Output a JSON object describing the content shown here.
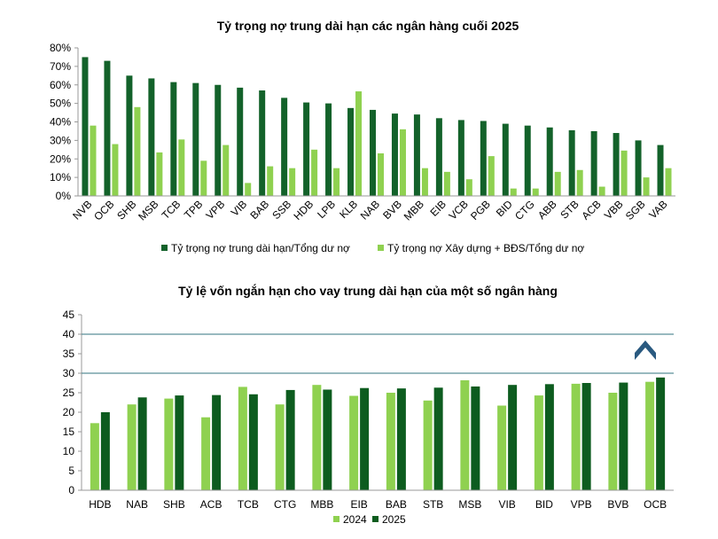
{
  "chart_data": [
    {
      "type": "bar",
      "title": "Tỷ trọng nợ trung dài hạn các ngân hàng cuối 2025",
      "categories": [
        "NVB",
        "OCB",
        "SHB",
        "MSB",
        "TCB",
        "TPB",
        "VPB",
        "VIB",
        "BAB",
        "SSB",
        "HDB",
        "LPB",
        "KLB",
        "NAB",
        "BVB",
        "MBB",
        "EIB",
        "VCB",
        "PGB",
        "BID",
        "CTG",
        "ABB",
        "STB",
        "ACB",
        "VBB",
        "SGB",
        "VAB"
      ],
      "series": [
        {
          "name": "Tỷ trọng nợ trung dài hạn/Tổng dư nợ",
          "color": "#13622a",
          "values": [
            75,
            73,
            65,
            63.5,
            61.5,
            61,
            60,
            58.5,
            57,
            53,
            50.5,
            50,
            47.5,
            46.5,
            44.5,
            44,
            42,
            41,
            40.5,
            39,
            38,
            37,
            35.5,
            35,
            34,
            30,
            27.5
          ]
        },
        {
          "name": "Tỷ trọng nợ Xây dựng + BĐS/Tổng dư nợ",
          "color": "#8fd150",
          "values": [
            38,
            28,
            48,
            23.5,
            30.5,
            19,
            27.5,
            7,
            16,
            15,
            25,
            15,
            56.5,
            23,
            36,
            15,
            13,
            9,
            21.5,
            4,
            4,
            13,
            14,
            5,
            24.5,
            10,
            15
          ]
        }
      ],
      "ylim": [
        0,
        80
      ],
      "yticks": [
        {
          "value": 0,
          "label": "0%"
        },
        {
          "value": 10,
          "label": "10%"
        },
        {
          "value": 20,
          "label": "20%"
        },
        {
          "value": 30,
          "label": "30%"
        },
        {
          "value": 40,
          "label": "40%"
        },
        {
          "value": 50,
          "label": "50%"
        },
        {
          "value": 60,
          "label": "60%"
        },
        {
          "value": 70,
          "label": "70%"
        },
        {
          "value": 80,
          "label": "80%"
        }
      ]
    },
    {
      "type": "bar",
      "title": "Tỷ lệ vốn ngắn hạn cho vay trung dài hạn của một số ngân hàng",
      "categories": [
        "HDB",
        "NAB",
        "SHB",
        "ACB",
        "TCB",
        "CTG",
        "MBB",
        "EIB",
        "BAB",
        "STB",
        "MSB",
        "VIB",
        "BID",
        "VPB",
        "BVB",
        "OCB"
      ],
      "series": [
        {
          "name": "2024",
          "color": "#8fd150",
          "values": [
            17.2,
            22,
            23.5,
            18.7,
            26.5,
            22,
            27,
            24.2,
            25,
            23,
            28.2,
            21.7,
            24.3,
            27.3,
            25,
            27.8
          ]
        },
        {
          "name": "2025",
          "color": "#0d5c1f",
          "values": [
            20,
            23.8,
            24.3,
            24.4,
            24.6,
            25.7,
            25.8,
            26.2,
            26.1,
            26.3,
            26.6,
            27,
            27.2,
            27.5,
            27.6,
            28.9
          ]
        }
      ],
      "ylim": [
        0,
        45
      ],
      "yticks": [
        0,
        5,
        10,
        15,
        20,
        25,
        30,
        35,
        40,
        45
      ],
      "reference_lines": [
        30,
        40
      ]
    }
  ]
}
